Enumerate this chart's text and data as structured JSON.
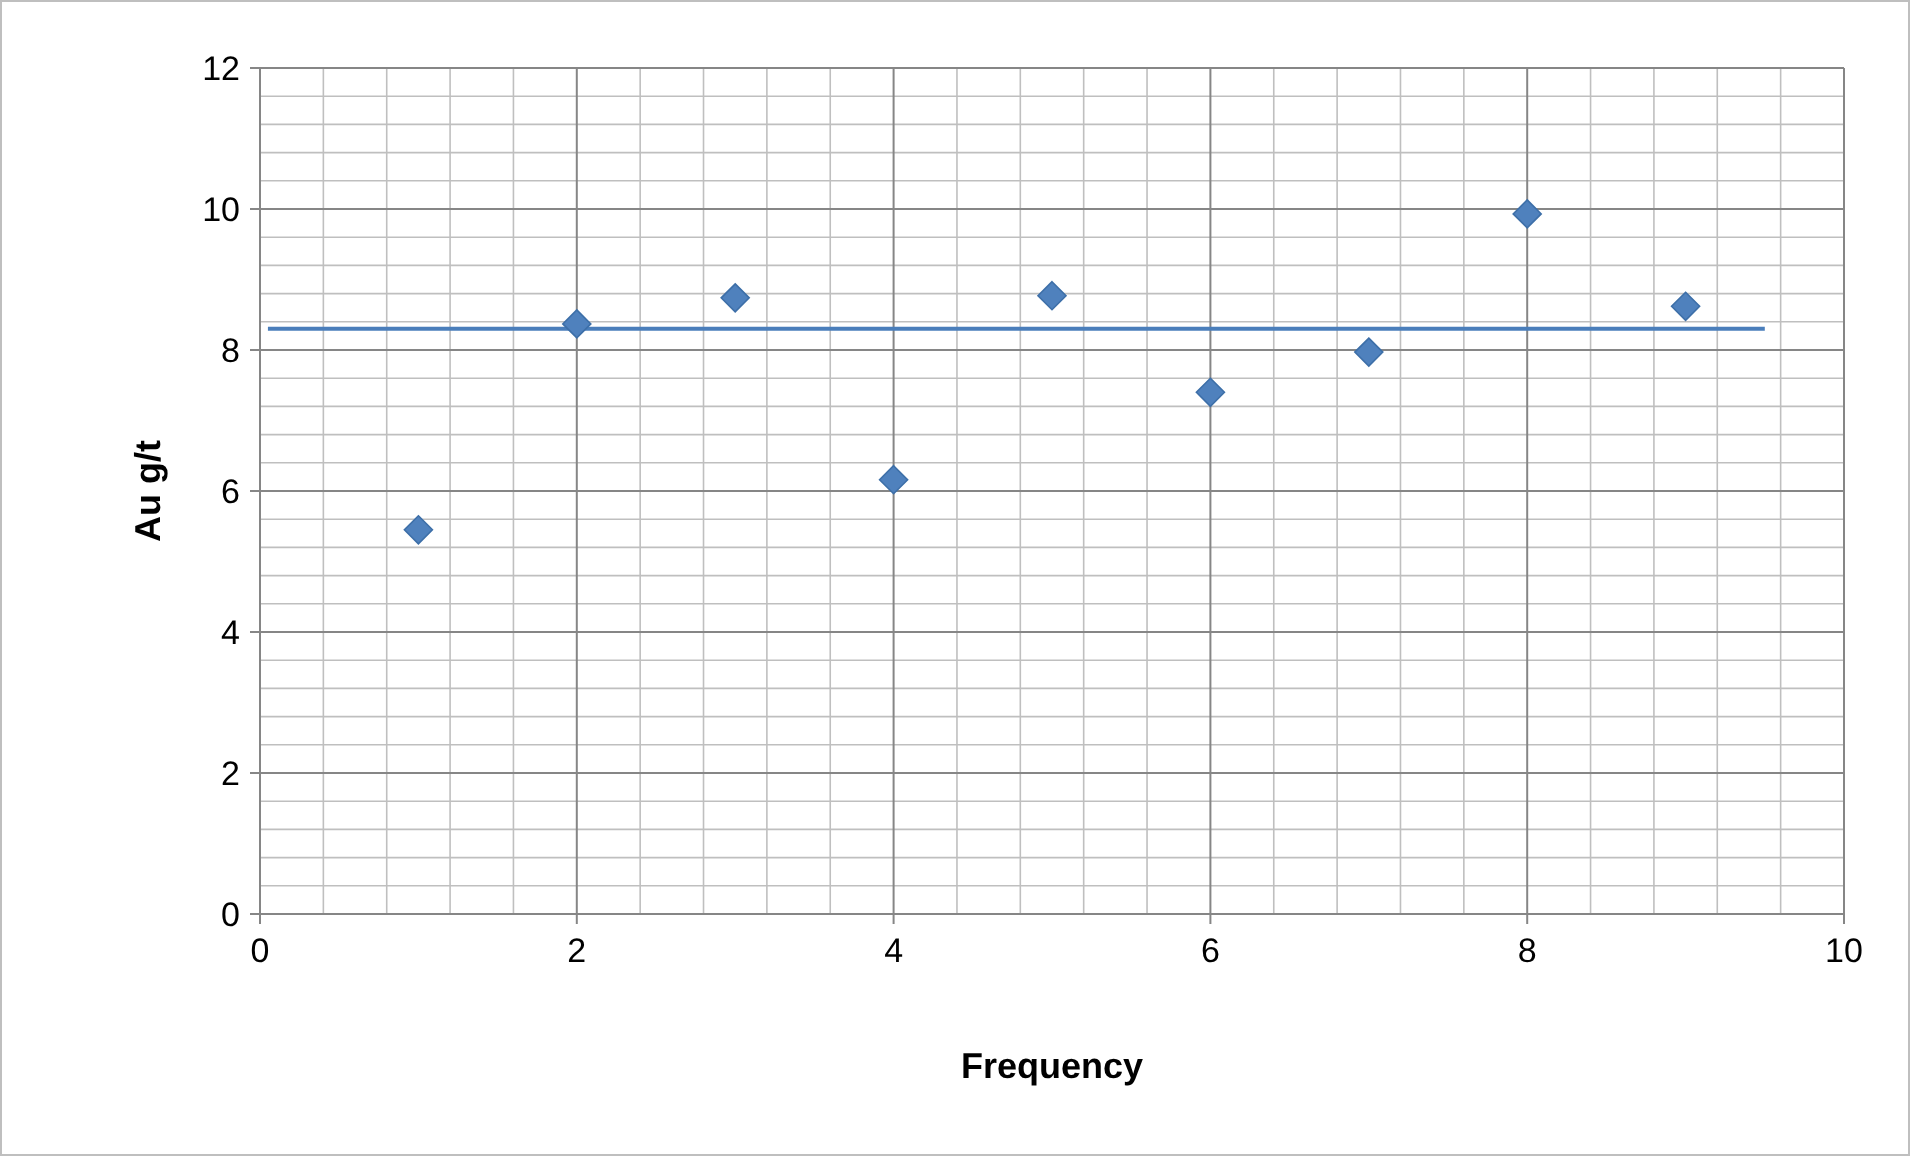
{
  "chart_data": {
    "type": "scatter",
    "xlabel": "Frequency",
    "ylabel": "Au g/t",
    "xlim": [
      0,
      10
    ],
    "xticks": [
      0,
      2,
      4,
      6,
      8,
      10
    ],
    "ylim": [
      0,
      12
    ],
    "yticks": [
      0,
      2,
      4,
      6,
      8,
      10,
      12
    ],
    "grid": true,
    "series": [
      {
        "marker": "diamond",
        "color": "#4f81bd",
        "x": [
          1,
          2,
          3,
          4,
          5,
          6,
          7,
          8,
          9
        ],
        "values": [
          5.45,
          8.37,
          8.74,
          6.16,
          8.77,
          7.4,
          7.97,
          9.93,
          8.62
        ]
      },
      {
        "type": "line",
        "color": "#4a7ebb",
        "x": [
          0.05,
          9.5
        ],
        "values": [
          8.3,
          8.3
        ]
      }
    ]
  }
}
